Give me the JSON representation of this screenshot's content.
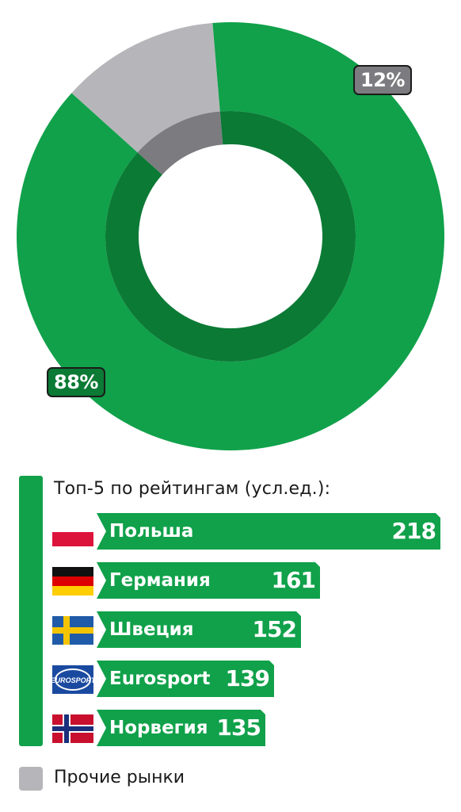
{
  "chart_data": [
    {
      "type": "pie",
      "series": [
        {
          "value": 88,
          "label": "88%",
          "color": "#10a14a",
          "inner_color": "#0b7a35"
        },
        {
          "value": 12,
          "label": "12%",
          "color": "#b6b6ba",
          "inner_color": "#7c7c80"
        }
      ]
    },
    {
      "type": "bar",
      "title": "Топ-5 по рейтингам (усл.ед.):",
      "categories": [
        "Польша",
        "Германия",
        "Швеция",
        "Eurosport",
        "Норвегия"
      ],
      "values": [
        218,
        161,
        152,
        139,
        135
      ],
      "icons": [
        "poland-flag-icon",
        "germany-flag-icon",
        "sweden-flag-icon",
        "eurosport-logo-icon",
        "norway-flag-icon"
      ],
      "color": "#10a14a"
    }
  ],
  "legend": {
    "other_label": "Прочие рынки",
    "other_color": "#b6b6ba"
  }
}
